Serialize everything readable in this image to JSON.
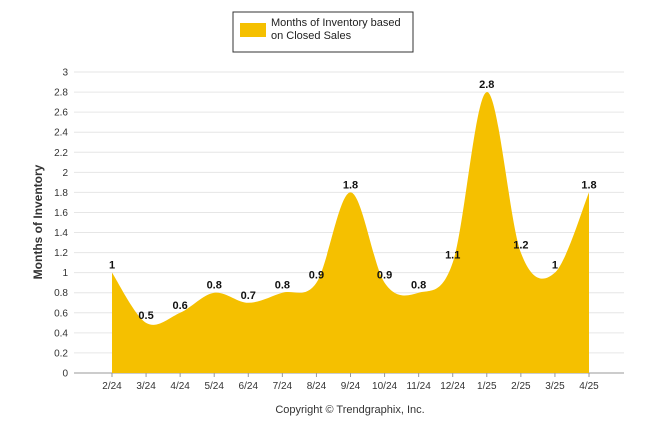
{
  "chart_data": {
    "type": "area",
    "categories": [
      "2/24",
      "3/24",
      "4/24",
      "5/24",
      "6/24",
      "7/24",
      "8/24",
      "9/24",
      "10/24",
      "11/24",
      "12/24",
      "1/25",
      "2/25",
      "3/25",
      "4/25"
    ],
    "series": [
      {
        "name": "Months of Inventory based on Closed Sales",
        "values": [
          1,
          0.5,
          0.6,
          0.8,
          0.7,
          0.8,
          0.9,
          1.8,
          0.9,
          0.8,
          1.1,
          2.8,
          1.2,
          1,
          1.8
        ],
        "data_labels": [
          "1",
          "0.5",
          "0.6",
          "0.8",
          "0.7",
          "0.8",
          "0.9",
          "1.8",
          "0.9",
          "0.8",
          "1.1",
          "2.8",
          "1.2",
          "1",
          "1.8"
        ],
        "color": "#F5C000"
      }
    ],
    "legend": {
      "line1": "Months of Inventory based",
      "line2": "on Closed Sales",
      "placement": "top-center"
    },
    "ylabel": "Months of Inventory",
    "xlabel": "",
    "ylim": [
      0,
      3
    ],
    "yticks": [
      "0",
      "0.2",
      "0.4",
      "0.6",
      "0.8",
      "1",
      "1.2",
      "1.4",
      "1.6",
      "1.8",
      "2",
      "2.2",
      "2.4",
      "2.6",
      "2.8",
      "3"
    ],
    "grid": true,
    "credit": "Copyright © Trendgraphix, Inc."
  }
}
